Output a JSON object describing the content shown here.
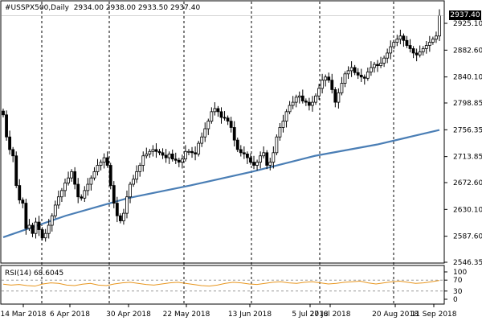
{
  "header": {
    "symbol": "#USSPX500,Daily",
    "open": "2934.00",
    "high": "2938.00",
    "low": "2933.50",
    "close": "2937.40",
    "last_price": "2937.40"
  },
  "price_axis": {
    "ticks": [
      "2925.10",
      "2882.60",
      "2840.10",
      "2798.85",
      "2756.35",
      "2713.85",
      "2672.60",
      "2630.10",
      "2587.60",
      "2546.35"
    ],
    "min": 2546.35,
    "max": 2925.1
  },
  "date_axis": {
    "ticks": [
      "14 Mar 2018",
      "6 Apr 2018",
      "30 Apr 2018",
      "22 May 2018",
      "13 Jun 2018",
      "5 Jul 2018",
      "27 Jul 2018",
      "20 Aug 2018",
      "11 Sep 2018"
    ]
  },
  "rsi": {
    "label": "RSI(14) 68.6045",
    "ticks": [
      "100",
      "70",
      "30",
      "0"
    ]
  },
  "colors": {
    "candle": "#000000",
    "moving_average": "#4a7eb5",
    "rsi_line": "#e8961e",
    "grid": "#000000",
    "badge_bg": "#000000"
  },
  "chart_data": {
    "type": "candlestick",
    "series": [
      {
        "name": "close",
        "values": [
          2780,
          2745,
          2725,
          2715,
          2668,
          2645,
          2640,
          2600,
          2605,
          2592,
          2610,
          2598,
          2585,
          2592,
          2605,
          2620,
          2637,
          2650,
          2660,
          2672,
          2680,
          2690,
          2670,
          2650,
          2648,
          2660,
          2670,
          2680,
          2690,
          2700,
          2705,
          2712,
          2700,
          2668,
          2640,
          2620,
          2612,
          2624,
          2650,
          2670,
          2678,
          2690,
          2700,
          2715,
          2718,
          2722,
          2725,
          2722,
          2720,
          2716,
          2712,
          2718,
          2710,
          2708,
          2705,
          2710,
          2722,
          2722,
          2720,
          2718,
          2735,
          2745,
          2758,
          2770,
          2785,
          2790,
          2785,
          2776,
          2775,
          2770,
          2760,
          2740,
          2725,
          2720,
          2718,
          2712,
          2705,
          2700,
          2705,
          2715,
          2720,
          2700,
          2705,
          2720,
          2745,
          2760,
          2770,
          2785,
          2795,
          2800,
          2808,
          2810,
          2802,
          2800,
          2795,
          2800,
          2810,
          2822,
          2835,
          2840,
          2835,
          2820,
          2800,
          2815,
          2830,
          2845,
          2850,
          2855,
          2847,
          2843,
          2840,
          2838,
          2848,
          2855,
          2860,
          2858,
          2862,
          2870,
          2878,
          2888,
          2895,
          2900,
          2905,
          2898,
          2890,
          2885,
          2878,
          2875,
          2880,
          2885,
          2890,
          2895,
          2900,
          2905,
          2937.4
        ]
      },
      {
        "name": "moving_average",
        "values": [
          2586,
          2620,
          2648,
          2668,
          2690,
          2715,
          2733,
          2756
        ]
      }
    ],
    "rsi": [
      55,
      52,
      54,
      50,
      48,
      56,
      60,
      58,
      52,
      50,
      55,
      58,
      52,
      50,
      56,
      60,
      62,
      58,
      54,
      52,
      56,
      60,
      62,
      58,
      54,
      50,
      48,
      52,
      58,
      62,
      60,
      56,
      54,
      58,
      62,
      64,
      60,
      58,
      62,
      64,
      60,
      56,
      58,
      62,
      64,
      66,
      60,
      56,
      60,
      64,
      66,
      62,
      58,
      60,
      64,
      68.6
    ]
  }
}
